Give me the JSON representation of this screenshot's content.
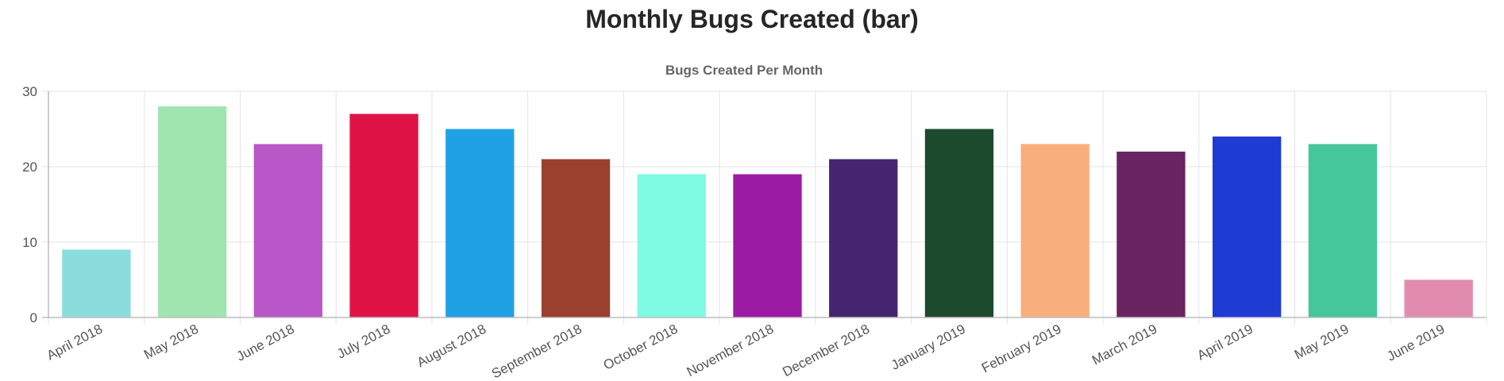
{
  "page": {
    "title": "Monthly Bugs Created (bar)"
  },
  "chart_data": {
    "type": "bar",
    "title": "Bugs Created Per Month",
    "xlabel": "",
    "ylabel": "",
    "ylim": [
      0,
      30
    ],
    "yticks": [
      0,
      10,
      20,
      30
    ],
    "grid": true,
    "legend": "none",
    "categories": [
      "April 2018",
      "May 2018",
      "June 2018",
      "July 2018",
      "August 2018",
      "September 2018",
      "October 2018",
      "November 2018",
      "December 2018",
      "January 2019",
      "February 2019",
      "March 2019",
      "April 2019",
      "May 2019",
      "June 2019"
    ],
    "values": [
      9,
      28,
      23,
      27,
      25,
      21,
      19,
      19,
      21,
      25,
      23,
      22,
      24,
      23,
      5
    ],
    "colors": [
      "#8adddc",
      "#a0e4b0",
      "#ba57c8",
      "#e01346",
      "#20a1e6",
      "#9a402e",
      "#7efbe2",
      "#9c1ba5",
      "#452570",
      "#1b4a2d",
      "#f9af7c",
      "#6a2461",
      "#1e3bd4",
      "#46c79b",
      "#e18cae"
    ]
  }
}
